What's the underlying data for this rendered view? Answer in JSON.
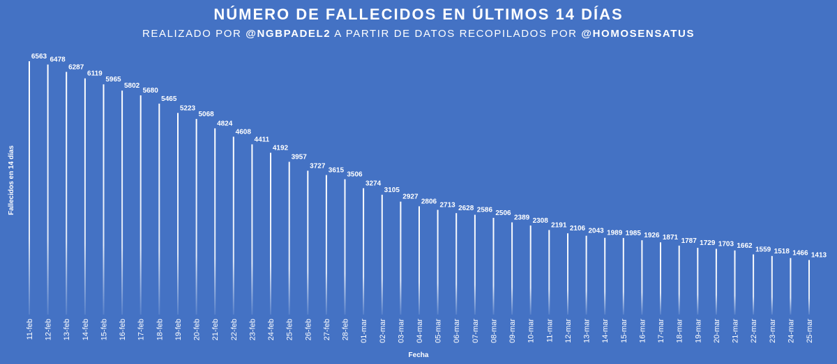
{
  "chart_data": {
    "type": "bar",
    "title": "NÚMERO DE FALLECIDOS EN ÚLTIMOS 14 DÍAS",
    "subtitle_parts": [
      "REALIZADO POR ",
      "@NGBPADEL2",
      " A PARTIR DE DATOS RECOPILADOS POR ",
      "@HOMOSENSATUS"
    ],
    "xlabel": "Fecha",
    "ylabel": "Fallecidos en 14 días",
    "categories": [
      "11-feb",
      "12-feb",
      "13-feb",
      "14-feb",
      "15-feb",
      "16-feb",
      "17-feb",
      "18-feb",
      "19-feb",
      "20-feb",
      "21-feb",
      "22-feb",
      "23-feb",
      "24-feb",
      "25-feb",
      "26-feb",
      "27-feb",
      "28-feb",
      "01-mar",
      "02-mar",
      "03-mar",
      "04-mar",
      "05-mar",
      "06-mar",
      "07-mar",
      "08-mar",
      "09-mar",
      "10-mar",
      "11-mar",
      "12-mar",
      "13-mar",
      "14-mar",
      "15-mar",
      "16-mar",
      "17-mar",
      "18-mar",
      "19-mar",
      "20-mar",
      "21-mar",
      "22-mar",
      "23-mar",
      "24-mar",
      "25-mar"
    ],
    "values": [
      6563,
      6478,
      6287,
      6119,
      5965,
      5802,
      5680,
      5465,
      5223,
      5068,
      4824,
      4608,
      4411,
      4192,
      3957,
      3727,
      3615,
      3506,
      3274,
      3105,
      2927,
      2806,
      2713,
      2628,
      2586,
      2506,
      2389,
      2308,
      2191,
      2106,
      2043,
      1989,
      1985,
      1926,
      1871,
      1787,
      1729,
      1703,
      1662,
      1559,
      1518,
      1466,
      1413
    ],
    "ylim": [
      0,
      7000
    ],
    "grid": false,
    "legend": "none",
    "colors": {
      "background": "#4472c4",
      "text": "#ffffff"
    }
  }
}
